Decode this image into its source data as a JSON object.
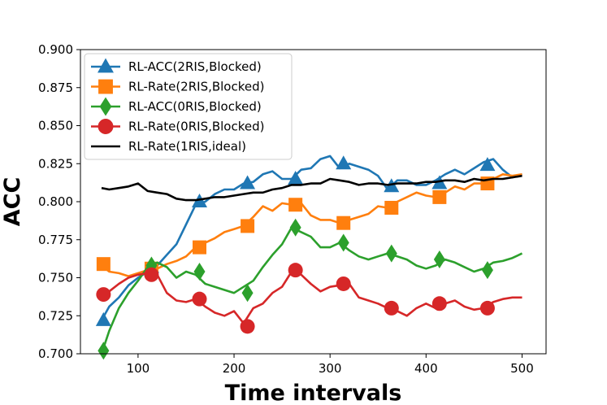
{
  "chart_data": {
    "type": "line",
    "title": "",
    "xlabel": "Time intervals",
    "ylabel": "ACC",
    "xlim": [
      40,
      525
    ],
    "ylim": [
      0.7,
      0.9
    ],
    "x_ticks": [
      100,
      200,
      300,
      400,
      500
    ],
    "x_tick_labels": [
      "100",
      "200",
      "300",
      "400",
      "500"
    ],
    "y_ticks": [
      0.7,
      0.725,
      0.75,
      0.775,
      0.8,
      0.825,
      0.85,
      0.875,
      0.9
    ],
    "y_tick_labels": [
      "0.700",
      "0.725",
      "0.750",
      "0.775",
      "0.800",
      "0.825",
      "0.850",
      "0.875",
      "0.900"
    ],
    "grid": false,
    "legend_position": "upper-left",
    "series": [
      {
        "name": "RL-ACC(2RIS,Blocked)",
        "color": "#1f77b4",
        "marker": "triangle",
        "x": [
          62,
          70,
          80,
          90,
          100,
          110,
          120,
          130,
          140,
          150,
          160,
          170,
          180,
          190,
          200,
          210,
          220,
          230,
          240,
          250,
          260,
          270,
          280,
          290,
          300,
          310,
          320,
          330,
          340,
          350,
          360,
          370,
          380,
          390,
          400,
          410,
          420,
          430,
          440,
          450,
          460,
          470,
          480,
          490,
          500
        ],
        "y": [
          0.722,
          0.731,
          0.737,
          0.745,
          0.75,
          0.754,
          0.758,
          0.765,
          0.772,
          0.785,
          0.798,
          0.8,
          0.805,
          0.808,
          0.808,
          0.812,
          0.813,
          0.818,
          0.82,
          0.815,
          0.815,
          0.821,
          0.822,
          0.828,
          0.83,
          0.822,
          0.825,
          0.823,
          0.821,
          0.817,
          0.808,
          0.814,
          0.814,
          0.811,
          0.811,
          0.814,
          0.818,
          0.821,
          0.818,
          0.822,
          0.826,
          0.828,
          0.821,
          0.816,
          0.818
        ],
        "marker_x": [
          64,
          114,
          164,
          214,
          264,
          314,
          364,
          414,
          464
        ],
        "marker_y": [
          0.722,
          0.757,
          0.8,
          0.812,
          0.815,
          0.825,
          0.81,
          0.812,
          0.824
        ]
      },
      {
        "name": "RL-Rate(2RIS,Blocked)",
        "color": "#ff7f0e",
        "marker": "square",
        "x": [
          62,
          70,
          80,
          90,
          100,
          110,
          120,
          130,
          140,
          150,
          160,
          170,
          180,
          190,
          200,
          210,
          220,
          230,
          240,
          250,
          260,
          270,
          280,
          290,
          300,
          310,
          320,
          330,
          340,
          350,
          360,
          370,
          380,
          390,
          400,
          410,
          420,
          430,
          440,
          450,
          460,
          470,
          480,
          490,
          500
        ],
        "y": [
          0.758,
          0.754,
          0.753,
          0.751,
          0.753,
          0.755,
          0.756,
          0.759,
          0.761,
          0.764,
          0.77,
          0.773,
          0.776,
          0.78,
          0.782,
          0.784,
          0.79,
          0.797,
          0.794,
          0.799,
          0.798,
          0.799,
          0.791,
          0.788,
          0.788,
          0.786,
          0.788,
          0.79,
          0.792,
          0.797,
          0.796,
          0.8,
          0.803,
          0.806,
          0.804,
          0.803,
          0.806,
          0.81,
          0.808,
          0.812,
          0.812,
          0.815,
          0.818,
          0.817,
          0.818
        ],
        "marker_x": [
          64,
          114,
          164,
          214,
          264,
          314,
          364,
          414,
          464
        ],
        "marker_y": [
          0.759,
          0.756,
          0.77,
          0.784,
          0.798,
          0.786,
          0.796,
          0.803,
          0.812
        ]
      },
      {
        "name": "RL-ACC(0RIS,Blocked)",
        "color": "#2ca02c",
        "marker": "diamond",
        "x": [
          62,
          70,
          80,
          90,
          100,
          110,
          120,
          130,
          140,
          150,
          160,
          170,
          180,
          190,
          200,
          210,
          220,
          230,
          240,
          250,
          260,
          270,
          280,
          290,
          300,
          310,
          320,
          330,
          340,
          350,
          360,
          370,
          380,
          390,
          400,
          410,
          420,
          430,
          440,
          450,
          460,
          470,
          480,
          490,
          500
        ],
        "y": [
          0.7,
          0.715,
          0.73,
          0.74,
          0.748,
          0.757,
          0.76,
          0.757,
          0.75,
          0.754,
          0.752,
          0.746,
          0.744,
          0.742,
          0.74,
          0.744,
          0.748,
          0.757,
          0.765,
          0.772,
          0.783,
          0.78,
          0.777,
          0.77,
          0.77,
          0.773,
          0.768,
          0.764,
          0.762,
          0.764,
          0.766,
          0.764,
          0.762,
          0.758,
          0.756,
          0.758,
          0.762,
          0.76,
          0.757,
          0.754,
          0.756,
          0.76,
          0.761,
          0.763,
          0.766
        ],
        "marker_x": [
          64,
          114,
          164,
          214,
          264,
          314,
          364,
          414,
          464
        ],
        "marker_y": [
          0.702,
          0.758,
          0.754,
          0.74,
          0.783,
          0.773,
          0.766,
          0.762,
          0.755
        ]
      },
      {
        "name": "RL-Rate(0RIS,Blocked)",
        "color": "#d62728",
        "marker": "circle",
        "x": [
          62,
          70,
          80,
          90,
          100,
          110,
          120,
          130,
          140,
          150,
          160,
          170,
          180,
          190,
          200,
          210,
          220,
          230,
          240,
          250,
          260,
          270,
          280,
          290,
          300,
          310,
          320,
          330,
          340,
          350,
          360,
          370,
          380,
          390,
          400,
          410,
          420,
          430,
          440,
          450,
          460,
          470,
          480,
          490,
          500
        ],
        "y": [
          0.739,
          0.741,
          0.746,
          0.75,
          0.752,
          0.753,
          0.752,
          0.74,
          0.735,
          0.734,
          0.736,
          0.731,
          0.727,
          0.725,
          0.728,
          0.72,
          0.73,
          0.733,
          0.74,
          0.744,
          0.754,
          0.752,
          0.746,
          0.741,
          0.744,
          0.745,
          0.746,
          0.737,
          0.735,
          0.733,
          0.73,
          0.728,
          0.725,
          0.73,
          0.733,
          0.73,
          0.733,
          0.735,
          0.731,
          0.729,
          0.73,
          0.734,
          0.736,
          0.737,
          0.737
        ],
        "marker_x": [
          64,
          114,
          164,
          214,
          264,
          314,
          364,
          414,
          464
        ],
        "marker_y": [
          0.739,
          0.752,
          0.736,
          0.718,
          0.755,
          0.746,
          0.73,
          0.733,
          0.73
        ]
      },
      {
        "name": "RL-Rate(1RIS,ideal)",
        "color": "#000000",
        "marker": "none",
        "x": [
          62,
          70,
          80,
          90,
          100,
          110,
          120,
          130,
          140,
          150,
          160,
          170,
          180,
          190,
          200,
          210,
          220,
          230,
          240,
          250,
          260,
          270,
          280,
          290,
          300,
          310,
          320,
          330,
          340,
          350,
          360,
          370,
          380,
          390,
          400,
          410,
          420,
          430,
          440,
          450,
          460,
          470,
          480,
          490,
          500
        ],
        "y": [
          0.809,
          0.808,
          0.809,
          0.81,
          0.812,
          0.807,
          0.806,
          0.805,
          0.802,
          0.801,
          0.801,
          0.802,
          0.803,
          0.803,
          0.804,
          0.805,
          0.806,
          0.806,
          0.808,
          0.809,
          0.811,
          0.811,
          0.812,
          0.812,
          0.815,
          0.814,
          0.813,
          0.811,
          0.812,
          0.812,
          0.811,
          0.812,
          0.812,
          0.812,
          0.813,
          0.813,
          0.814,
          0.814,
          0.813,
          0.815,
          0.814,
          0.815,
          0.815,
          0.816,
          0.817
        ]
      }
    ]
  }
}
